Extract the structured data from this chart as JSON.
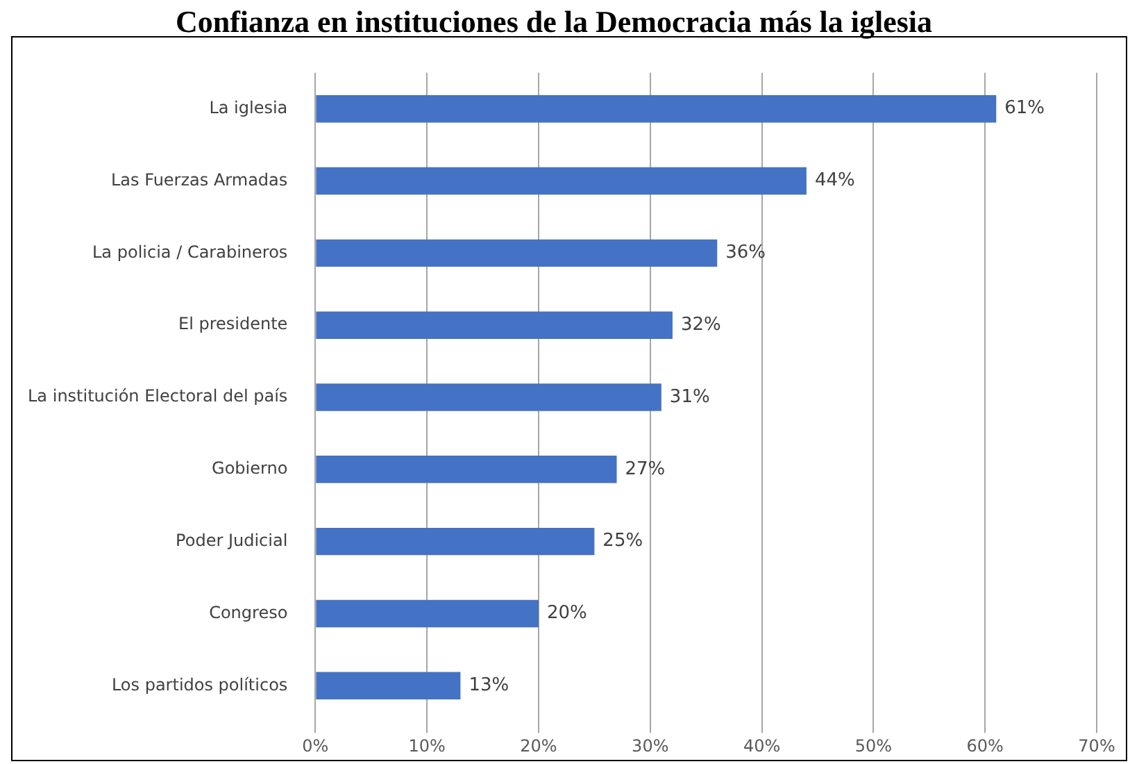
{
  "chart_data": {
    "type": "bar",
    "orientation": "horizontal",
    "title": "Confianza en instituciones de la Democracia más la iglesia",
    "categories": [
      "La iglesia",
      "Las Fuerzas Armadas",
      "La policia / Carabineros",
      "El presidente",
      "La institución Electoral del país",
      "Gobierno",
      "Poder Judicial",
      "Congreso",
      "Los partidos políticos"
    ],
    "values": [
      61,
      44,
      36,
      32,
      31,
      27,
      25,
      20,
      13
    ],
    "value_labels": [
      "61%",
      "44%",
      "36%",
      "32%",
      "31%",
      "27%",
      "25%",
      "20%",
      "13%"
    ],
    "color": "#4472c4",
    "xlim": [
      0,
      70
    ],
    "xticks": [
      {
        "value": 0,
        "label": "0%"
      },
      {
        "value": 10,
        "label": "10%"
      },
      {
        "value": 20,
        "label": "20%"
      },
      {
        "value": 30,
        "label": "30%"
      },
      {
        "value": 40,
        "label": "40%"
      },
      {
        "value": 50,
        "label": "50%"
      },
      {
        "value": 60,
        "label": "60%"
      },
      {
        "value": 70,
        "label": "70%"
      }
    ],
    "grid": "x",
    "legend": false
  }
}
